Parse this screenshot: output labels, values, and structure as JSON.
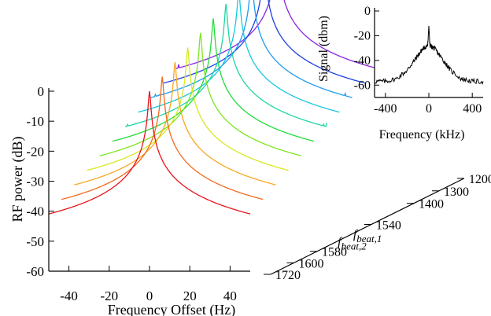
{
  "chart_data": [
    {
      "type": "line",
      "title": "",
      "xlabel": "Frequency Offset (Hz)",
      "ylabel": "RF power (dB)",
      "xlim": [
        -50,
        50
      ],
      "ylim": [
        -60,
        0
      ],
      "xticks": [
        -40,
        -20,
        0,
        20,
        40
      ],
      "yticks": [
        0,
        -10,
        -20,
        -30,
        -40,
        -50,
        -60
      ],
      "depth_axis_labels": [
        "1200",
        "1300",
        "1400",
        "1540",
        "1580",
        "1600",
        "1720"
      ],
      "depth_axis_annotations": [
        {
          "base": "f",
          "sub": "beat,1"
        },
        {
          "base": "f",
          "sub": "beat,2"
        }
      ],
      "series": [
        {
          "color": "#e8141c",
          "peak_db": 0,
          "floor_db": -56
        },
        {
          "color": "#f26a1d",
          "peak_db": 0,
          "floor_db": -52
        },
        {
          "color": "#f7a722",
          "peak_db": 0,
          "floor_db": -49
        },
        {
          "color": "#d8e81f",
          "peak_db": 0,
          "floor_db": -47
        },
        {
          "color": "#7be61f",
          "peak_db": 0,
          "floor_db": -47
        },
        {
          "color": "#22dd3a",
          "peak_db": 0,
          "floor_db": -47
        },
        {
          "color": "#1ed6a4",
          "peak_db": 0,
          "floor_db": -44
        },
        {
          "color": "#19c7e0",
          "peak_db": 0,
          "floor_db": -45
        },
        {
          "color": "#1e9bf0",
          "peak_db": 0,
          "floor_db": -43
        },
        {
          "color": "#1c40e3",
          "peak_db": 0,
          "floor_db": -45
        },
        {
          "color": "#8a22e6",
          "peak_db": 0,
          "floor_db": -44
        }
      ]
    },
    {
      "type": "line",
      "title": "",
      "xlabel": "Frequency (kHz)",
      "ylabel": "Signal (dbm)",
      "xlim": [
        -500,
        500
      ],
      "ylim": [
        -70,
        0
      ],
      "xticks": [
        -400,
        0,
        400
      ],
      "yticks": [
        0,
        -20,
        -40,
        -60
      ],
      "series": [
        {
          "color": "#000000",
          "x": [
            -500,
            -400,
            -300,
            -200,
            -150,
            -100,
            -60,
            -30,
            -10,
            0,
            10,
            30,
            60,
            100,
            150,
            200,
            300,
            400,
            500
          ],
          "y": [
            -57,
            -57,
            -55,
            -48,
            -42,
            -36,
            -31,
            -29,
            -28,
            -12,
            -28,
            -29,
            -31,
            -36,
            -42,
            -48,
            -55,
            -57,
            -57
          ]
        }
      ]
    }
  ]
}
